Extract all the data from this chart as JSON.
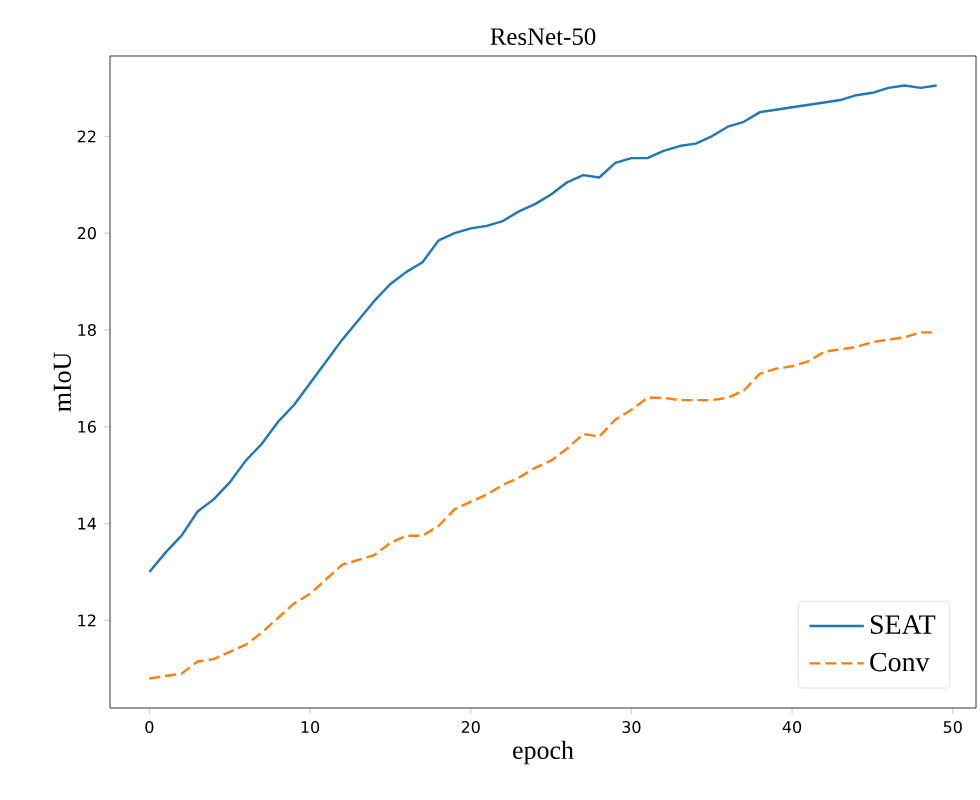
{
  "chart_data": {
    "type": "line",
    "title": "ResNet-50",
    "xlabel": "epoch",
    "ylabel": "mIoU",
    "x": [
      0,
      1,
      2,
      3,
      4,
      5,
      6,
      7,
      8,
      9,
      10,
      11,
      12,
      13,
      14,
      15,
      16,
      17,
      18,
      19,
      20,
      21,
      22,
      23,
      24,
      25,
      26,
      27,
      28,
      29,
      30,
      31,
      32,
      33,
      34,
      35,
      36,
      37,
      38,
      39,
      40,
      41,
      42,
      43,
      44,
      45,
      46,
      47,
      48,
      49
    ],
    "series": [
      {
        "name": "SEAT",
        "color": "#1f77b4",
        "line_style": "solid",
        "values": [
          13.0,
          13.4,
          13.75,
          14.25,
          14.5,
          14.85,
          15.3,
          15.65,
          16.1,
          16.45,
          16.9,
          17.35,
          17.8,
          18.2,
          18.6,
          18.95,
          19.2,
          19.4,
          19.85,
          20.0,
          20.1,
          20.15,
          20.25,
          20.45,
          20.6,
          20.8,
          21.05,
          21.2,
          21.15,
          21.45,
          21.55,
          21.55,
          21.7,
          21.8,
          21.85,
          22.0,
          22.2,
          22.3,
          22.5,
          22.55,
          22.6,
          22.65,
          22.7,
          22.75,
          22.85,
          22.9,
          23.0,
          23.05,
          23.0,
          23.05
        ]
      },
      {
        "name": "Conv",
        "color": "#ff7f0e",
        "line_style": "dashed",
        "values": [
          10.8,
          10.85,
          10.9,
          11.15,
          11.2,
          11.35,
          11.5,
          11.75,
          12.05,
          12.35,
          12.55,
          12.85,
          13.15,
          13.25,
          13.35,
          13.6,
          13.75,
          13.75,
          13.95,
          14.3,
          14.45,
          14.6,
          14.8,
          14.95,
          15.15,
          15.3,
          15.55,
          15.85,
          15.8,
          16.15,
          16.35,
          16.6,
          16.6,
          16.55,
          16.55,
          16.55,
          16.6,
          16.75,
          17.1,
          17.2,
          17.25,
          17.35,
          17.55,
          17.6,
          17.65,
          17.75,
          17.8,
          17.85,
          17.95,
          17.95
        ]
      }
    ],
    "xlim": [
      -2.45,
      51.45
    ],
    "ylim": [
      10.19,
      23.66
    ],
    "xticks": [
      0,
      10,
      20,
      30,
      40,
      50
    ],
    "yticks": [
      12,
      14,
      16,
      18,
      20,
      22
    ],
    "grid": false,
    "legend": "bottom right",
    "marker": "none"
  }
}
